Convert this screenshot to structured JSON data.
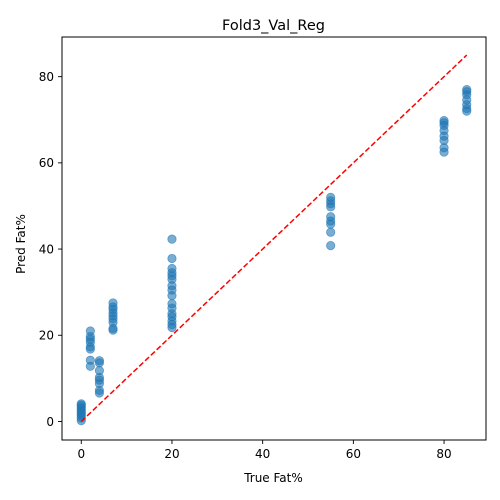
{
  "chart_data": {
    "type": "scatter",
    "title": "Fold3_Val_Reg",
    "xlabel": "True Fat%",
    "ylabel": "Pred Fat%",
    "xlim": [
      -4.25,
      89.25
    ],
    "ylim": [
      -4.3,
      89.2
    ],
    "xticks": [
      0,
      20,
      40,
      60,
      80
    ],
    "yticks": [
      0,
      20,
      40,
      60,
      80
    ],
    "grid": false,
    "series": [
      {
        "color": "#1f77b4",
        "opacity": 0.6,
        "points": [
          [
            0,
            0.2
          ],
          [
            0,
            0.8
          ],
          [
            0,
            1.3
          ],
          [
            0,
            1.7
          ],
          [
            0,
            2.1
          ],
          [
            0,
            2.5
          ],
          [
            0,
            3.0
          ],
          [
            0,
            3.4
          ],
          [
            0,
            3.8
          ],
          [
            0,
            4.1
          ],
          [
            2,
            12.8
          ],
          [
            2,
            14.2
          ],
          [
            2,
            16.8
          ],
          [
            2,
            17.3
          ],
          [
            2,
            18.4
          ],
          [
            2,
            19.1
          ],
          [
            2,
            19.7
          ],
          [
            2,
            21.0
          ],
          [
            4,
            6.6
          ],
          [
            4,
            7.2
          ],
          [
            4,
            8.8
          ],
          [
            4,
            9.6
          ],
          [
            4,
            10.2
          ],
          [
            4,
            11.8
          ],
          [
            4,
            13.6
          ],
          [
            4,
            14.1
          ],
          [
            7,
            21.2
          ],
          [
            7,
            21.6
          ],
          [
            7,
            23.0
          ],
          [
            7,
            23.8
          ],
          [
            7,
            24.5
          ],
          [
            7,
            25.2
          ],
          [
            7,
            26.0
          ],
          [
            7,
            26.6
          ],
          [
            7,
            27.5
          ],
          [
            20,
            21.8
          ],
          [
            20,
            22.5
          ],
          [
            20,
            23.3
          ],
          [
            20,
            24.3
          ],
          [
            20,
            25.0
          ],
          [
            20,
            26.3
          ],
          [
            20,
            27.3
          ],
          [
            20,
            29.2
          ],
          [
            20,
            30.5
          ],
          [
            20,
            31.5
          ],
          [
            20,
            33.0
          ],
          [
            20,
            33.8
          ],
          [
            20,
            34.5
          ],
          [
            20,
            35.5
          ],
          [
            20,
            37.8
          ],
          [
            20,
            42.3
          ],
          [
            55,
            40.8
          ],
          [
            55,
            43.9
          ],
          [
            55,
            45.8
          ],
          [
            55,
            46.5
          ],
          [
            55,
            47.5
          ],
          [
            55,
            49.8
          ],
          [
            55,
            50.5
          ],
          [
            55,
            51.2
          ],
          [
            55,
            52.0
          ],
          [
            80,
            62.5
          ],
          [
            80,
            63.5
          ],
          [
            80,
            65.2
          ],
          [
            80,
            66.2
          ],
          [
            80,
            67.5
          ],
          [
            80,
            68.7
          ],
          [
            80,
            69.3
          ],
          [
            80,
            69.8
          ],
          [
            85,
            72.0
          ],
          [
            85,
            72.6
          ],
          [
            85,
            73.5
          ],
          [
            85,
            74.6
          ],
          [
            85,
            75.8
          ],
          [
            85,
            76.5
          ],
          [
            85,
            77.0
          ]
        ]
      }
    ],
    "reference_line": {
      "x": [
        0,
        85
      ],
      "y": [
        0,
        85
      ],
      "color": "#ff0000",
      "style": "dashed"
    }
  }
}
